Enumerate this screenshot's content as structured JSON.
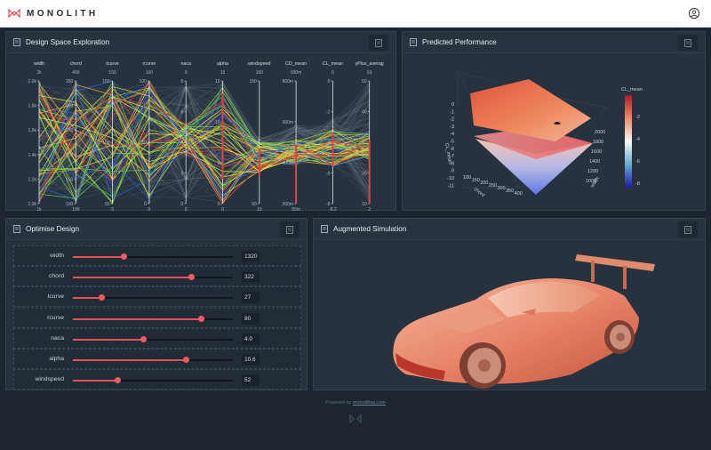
{
  "app": {
    "name": "MONOLITH"
  },
  "panels": {
    "design_space": {
      "title": "Design Space Exploration"
    },
    "predicted": {
      "title": "Predicted Performance"
    },
    "optimise": {
      "title": "Optimise Design"
    },
    "augmented": {
      "title": "Augmented Simulation"
    }
  },
  "parallel_coords": {
    "axes": [
      {
        "name": "width",
        "top": "2k",
        "ticks": [
          "2.0k",
          "1.8k",
          "1.6k",
          "1.4k",
          "1.2k",
          "1.0k"
        ],
        "bottom": "1k"
      },
      {
        "name": "chord",
        "top": "400",
        "ticks": [
          "350",
          "300",
          "250",
          "200",
          "150",
          "100"
        ],
        "bottom": "100"
      },
      {
        "name": "tcurve",
        "top": "150",
        "ticks": [
          "150",
          "100",
          "50"
        ],
        "bottom": "0"
      },
      {
        "name": "rcurve",
        "top": "100",
        "ticks": [
          "100",
          "50",
          "0"
        ],
        "bottom": "0"
      },
      {
        "name": "naca",
        "top": "9",
        "ticks": [
          "8",
          "6",
          "4",
          "2",
          "0"
        ],
        "bottom": "0"
      },
      {
        "name": "alpha",
        "top": "15",
        "ticks": [
          "15",
          "10",
          "5",
          "0"
        ],
        "bottom": "0"
      },
      {
        "name": "windspeed",
        "top": "160",
        "ticks": [
          "150",
          "100",
          "50"
        ],
        "bottom": "10"
      },
      {
        "name": "CD_mean",
        "top": "930m",
        "ticks": [
          "800m",
          "600m",
          "400m",
          "200m"
        ],
        "bottom": "50m"
      },
      {
        "name": "CL_mean",
        "top": "0",
        "ticks": [
          "0",
          "-2",
          "-4",
          "-6",
          "-8"
        ],
        "bottom": "-8.2"
      },
      {
        "name": "yPlus_averag",
        "top": "53",
        "ticks": [
          "50",
          "40",
          "30",
          "20",
          "10"
        ],
        "bottom": "2"
      }
    ]
  },
  "surface": {
    "z_title": "CL_mean",
    "z_ticks": [
      "0",
      "-1",
      "-2",
      "-3",
      "-4",
      "-5",
      "-6",
      "-7",
      "-8",
      "-9",
      "-10",
      "-11"
    ],
    "x_title": "chord",
    "x_ticks": [
      "100",
      "150",
      "200",
      "250",
      "300",
      "350",
      "400"
    ],
    "y_title": "width",
    "y_ticks": [
      "1000",
      "1200",
      "1400",
      "1600",
      "1800",
      "2000"
    ],
    "colorbar_title": "CL_mean",
    "colorbar_ticks": [
      "-2",
      "-4",
      "-6",
      "-8"
    ]
  },
  "sliders": [
    {
      "label": "width",
      "value": "1320",
      "fraction": 0.32
    },
    {
      "label": "chord",
      "value": "322",
      "fraction": 0.74
    },
    {
      "label": "tcurve",
      "value": "27",
      "fraction": 0.18
    },
    {
      "label": "rcurve",
      "value": "80",
      "fraction": 0.8
    },
    {
      "label": "naca",
      "value": "4.0",
      "fraction": 0.44
    },
    {
      "label": "alpha",
      "value": "10.6",
      "fraction": 0.71
    },
    {
      "label": "windspeed",
      "value": "52",
      "fraction": 0.28
    }
  ],
  "footer": {
    "powered_by": "Powered by",
    "link": "monolithai.com"
  },
  "colors": {
    "accent": "#e85159",
    "panel": "#26323e",
    "background": "#1d2630"
  },
  "icons": {
    "user": "user-circle-icon",
    "doc": "document-icon",
    "logo": "monolith-logo-icon"
  }
}
